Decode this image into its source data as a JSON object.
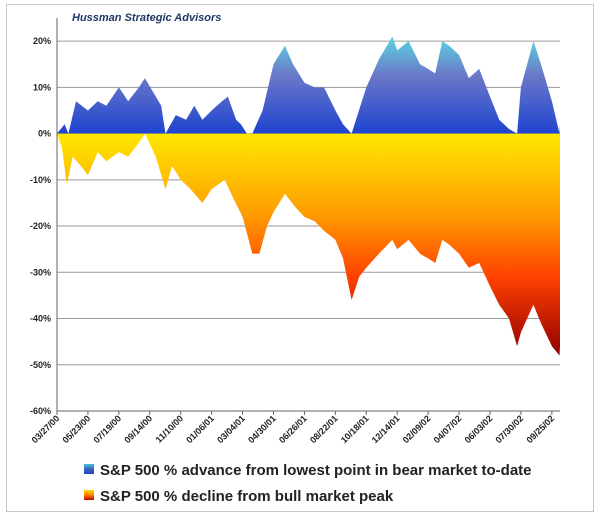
{
  "chart_data": {
    "type": "area",
    "title": "Hussman Strategic Advisors",
    "ylim": [
      -0.6,
      0.25
    ],
    "yticks": [
      "20%",
      "10%",
      "0%",
      "-10%",
      "-20%",
      "-30%",
      "-40%",
      "-50%",
      "-60%"
    ],
    "ytick_values": [
      0.2,
      0.1,
      0.0,
      -0.1,
      -0.2,
      -0.3,
      -0.4,
      -0.5,
      -0.6
    ],
    "grid": true,
    "xticks": [
      "03/27/00",
      "05/23/00",
      "07/19/00",
      "09/14/00",
      "11/10/00",
      "01/06/01",
      "03/04/01",
      "04/30/01",
      "06/26/01",
      "08/22/01",
      "10/18/01",
      "12/14/01",
      "02/09/02",
      "04/07/02",
      "06/03/02",
      "07/30/02",
      "09/25/02"
    ],
    "x_range": [
      "03/27/00",
      "10/10/02"
    ],
    "series": [
      {
        "name": "S&P 500 % advance from lowest point in bear market to-date",
        "color_top": "#40c8d8",
        "color_bottom": "#1f44c8",
        "points": [
          [
            "03/27/00",
            0.0
          ],
          [
            "04/10/00",
            0.02
          ],
          [
            "04/17/00",
            0.0
          ],
          [
            "05/01/00",
            0.07
          ],
          [
            "05/23/00",
            0.05
          ],
          [
            "06/10/00",
            0.07
          ],
          [
            "06/26/00",
            0.06
          ],
          [
            "07/19/00",
            0.1
          ],
          [
            "08/05/00",
            0.07
          ],
          [
            "08/25/00",
            0.1
          ],
          [
            "09/05/00",
            0.12
          ],
          [
            "09/25/00",
            0.08
          ],
          [
            "10/05/00",
            0.06
          ],
          [
            "10/13/00",
            0.0
          ],
          [
            "11/01/00",
            0.04
          ],
          [
            "11/20/00",
            0.03
          ],
          [
            "12/05/00",
            0.06
          ],
          [
            "12/20/00",
            0.03
          ],
          [
            "01/06/01",
            0.05
          ],
          [
            "01/25/01",
            0.07
          ],
          [
            "02/05/01",
            0.08
          ],
          [
            "02/20/01",
            0.03
          ],
          [
            "03/01/01",
            0.02
          ],
          [
            "03/12/01",
            0.0
          ],
          [
            "03/22/01",
            0.0
          ],
          [
            "04/10/01",
            0.05
          ],
          [
            "04/30/01",
            0.15
          ],
          [
            "05/21/01",
            0.19
          ],
          [
            "06/05/01",
            0.15
          ],
          [
            "06/26/01",
            0.11
          ],
          [
            "07/15/01",
            0.1
          ],
          [
            "08/01/01",
            0.1
          ],
          [
            "08/22/01",
            0.05
          ],
          [
            "09/05/01",
            0.02
          ],
          [
            "09/21/01",
            0.0
          ],
          [
            "10/18/01",
            0.1
          ],
          [
            "11/10/01",
            0.16
          ],
          [
            "12/05/01",
            0.21
          ],
          [
            "12/14/01",
            0.18
          ],
          [
            "01/04/02",
            0.2
          ],
          [
            "01/25/02",
            0.15
          ],
          [
            "02/09/02",
            0.14
          ],
          [
            "02/22/02",
            0.13
          ],
          [
            "03/07/02",
            0.2
          ],
          [
            "03/20/02",
            0.19
          ],
          [
            "04/07/02",
            0.17
          ],
          [
            "04/25/02",
            0.12
          ],
          [
            "05/14/02",
            0.14
          ],
          [
            "06/03/02",
            0.08
          ],
          [
            "06/20/02",
            0.03
          ],
          [
            "07/08/02",
            0.01
          ],
          [
            "07/23/02",
            0.0
          ],
          [
            "07/30/02",
            0.1
          ],
          [
            "08/22/02",
            0.2
          ],
          [
            "09/05/02",
            0.15
          ],
          [
            "09/25/02",
            0.07
          ],
          [
            "10/09/02",
            0.0
          ],
          [
            "10/10/02",
            0.02
          ]
        ]
      },
      {
        "name": "S&P 500 % decline from bull market peak",
        "color_top": "#ffd800",
        "color_bottom": "#a00000",
        "points": [
          [
            "03/27/00",
            0.0
          ],
          [
            "04/05/00",
            -0.03
          ],
          [
            "04/14/00",
            -0.11
          ],
          [
            "04/25/00",
            -0.05
          ],
          [
            "05/10/00",
            -0.07
          ],
          [
            "05/23/00",
            -0.09
          ],
          [
            "06/10/00",
            -0.04
          ],
          [
            "06/26/00",
            -0.06
          ],
          [
            "07/19/00",
            -0.04
          ],
          [
            "08/05/00",
            -0.05
          ],
          [
            "08/25/00",
            -0.02
          ],
          [
            "09/05/00",
            0.0
          ],
          [
            "09/25/00",
            -0.05
          ],
          [
            "10/13/00",
            -0.12
          ],
          [
            "10/25/00",
            -0.07
          ],
          [
            "11/10/00",
            -0.1
          ],
          [
            "11/28/00",
            -0.12
          ],
          [
            "12/20/00",
            -0.15
          ],
          [
            "01/06/01",
            -0.12
          ],
          [
            "01/30/01",
            -0.1
          ],
          [
            "02/15/01",
            -0.14
          ],
          [
            "03/04/01",
            -0.18
          ],
          [
            "03/22/01",
            -0.26
          ],
          [
            "04/04/01",
            -0.26
          ],
          [
            "04/18/01",
            -0.2
          ],
          [
            "04/30/01",
            -0.17
          ],
          [
            "05/21/01",
            -0.13
          ],
          [
            "06/10/01",
            -0.16
          ],
          [
            "06/26/01",
            -0.18
          ],
          [
            "07/15/01",
            -0.19
          ],
          [
            "08/01/01",
            -0.21
          ],
          [
            "08/22/01",
            -0.23
          ],
          [
            "09/05/01",
            -0.27
          ],
          [
            "09/21/01",
            -0.36
          ],
          [
            "10/05/01",
            -0.31
          ],
          [
            "10/18/01",
            -0.29
          ],
          [
            "11/10/01",
            -0.26
          ],
          [
            "12/05/01",
            -0.23
          ],
          [
            "12/14/01",
            -0.25
          ],
          [
            "01/04/02",
            -0.23
          ],
          [
            "01/25/02",
            -0.26
          ],
          [
            "02/09/02",
            -0.27
          ],
          [
            "02/22/02",
            -0.28
          ],
          [
            "03/07/02",
            -0.23
          ],
          [
            "03/20/02",
            -0.24
          ],
          [
            "04/07/02",
            -0.26
          ],
          [
            "04/25/02",
            -0.29
          ],
          [
            "05/14/02",
            -0.28
          ],
          [
            "06/03/02",
            -0.33
          ],
          [
            "06/20/02",
            -0.37
          ],
          [
            "07/08/02",
            -0.4
          ],
          [
            "07/23/02",
            -0.46
          ],
          [
            "07/30/02",
            -0.43
          ],
          [
            "08/22/02",
            -0.37
          ],
          [
            "09/05/02",
            -0.41
          ],
          [
            "09/25/02",
            -0.46
          ],
          [
            "10/09/02",
            -0.48
          ],
          [
            "10/10/02",
            -0.46
          ]
        ]
      }
    ],
    "legend": [
      "S&P 500 % advance from lowest point in bear market to-date",
      "S&P 500 % decline from bull market peak"
    ],
    "legend_position": "bottom"
  }
}
